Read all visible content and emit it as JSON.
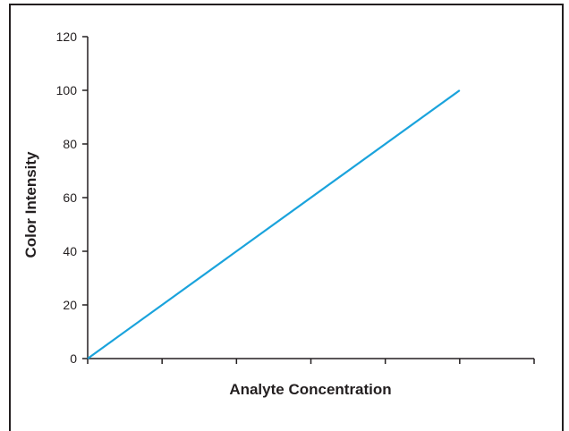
{
  "colors": {
    "line": "#1aa3dc",
    "axis": "#231f20",
    "frame": "#231f20"
  },
  "chart_data": {
    "type": "line",
    "title": "",
    "xlabel": "Analyte Concentration",
    "ylabel": "Color Intensity",
    "ylim": [
      0,
      120
    ],
    "xlim": [
      0,
      6
    ],
    "y_ticks": [
      "0",
      "20",
      "40",
      "60",
      "80",
      "100",
      "120"
    ],
    "x_ticks_count": 6,
    "x_tick_labels_shown": false,
    "grid": false,
    "legend": "none",
    "series": [
      {
        "x": [
          0,
          5
        ],
        "y": [
          0,
          100
        ]
      }
    ]
  }
}
